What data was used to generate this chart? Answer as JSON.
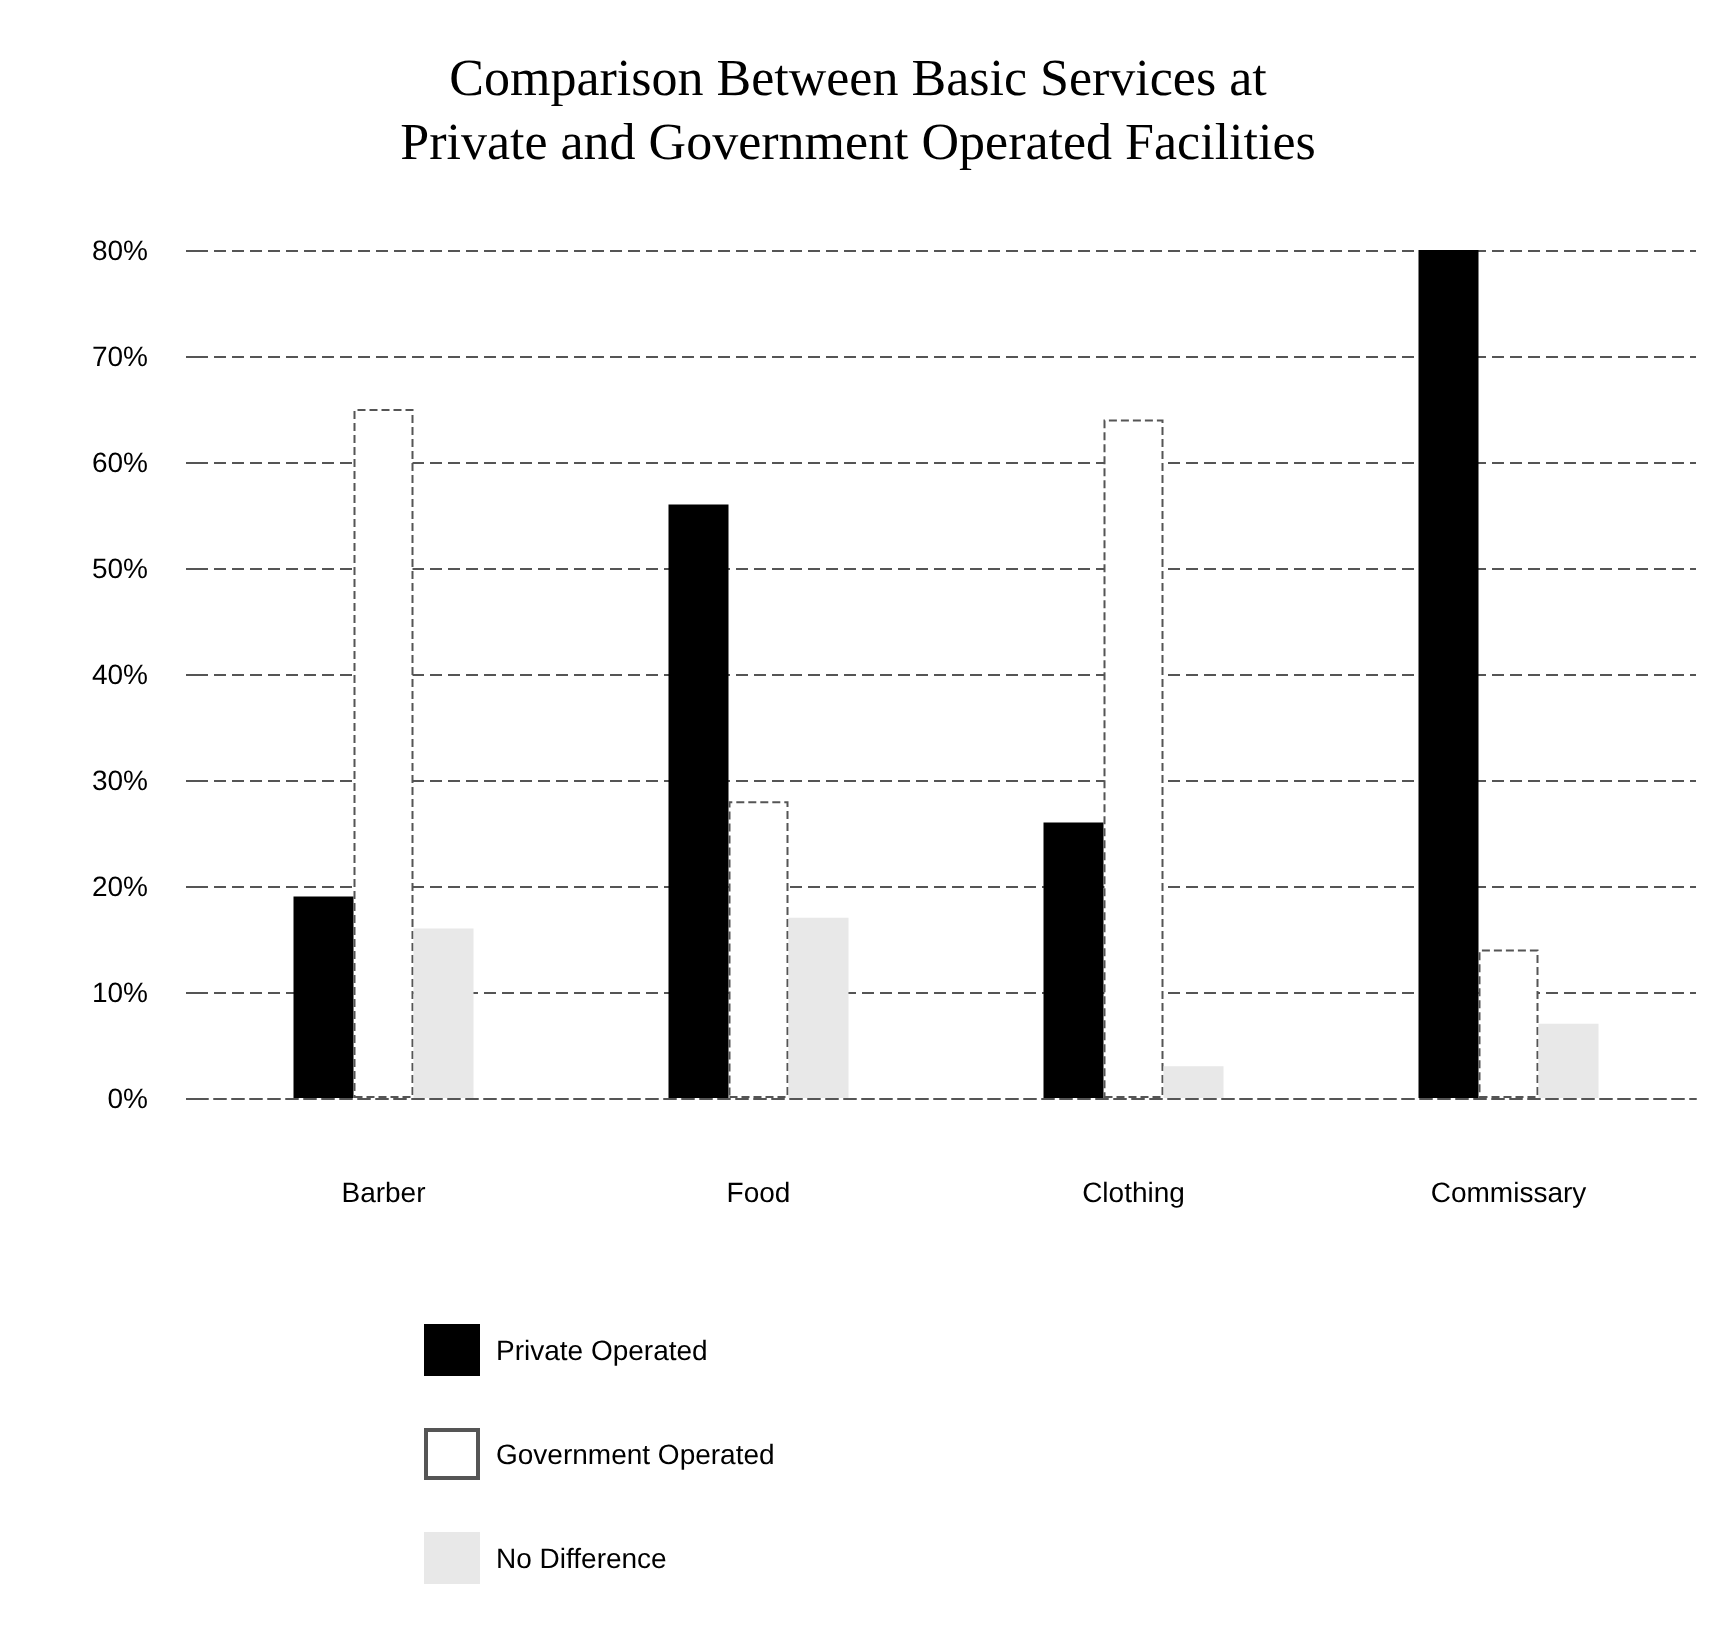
{
  "chart_data": {
    "type": "bar",
    "title": "Comparison Between Basic Services at\nPrivate and Government Operated Facilities",
    "categories": [
      "Barber",
      "Food",
      "Clothing",
      "Commissary"
    ],
    "series": [
      {
        "name": "Private Operated",
        "color": "#000000",
        "values": [
          19,
          56,
          26,
          80
        ]
      },
      {
        "name": "Government Operated",
        "color": "#ffffff",
        "values": [
          65,
          28,
          64,
          14
        ]
      },
      {
        "name": "No Difference",
        "color": "#e8e8e8",
        "values": [
          16,
          17,
          3,
          7
        ]
      }
    ],
    "ylim": [
      0,
      80
    ],
    "yticks": [
      {
        "value": 0,
        "label": "0%"
      },
      {
        "value": 10,
        "label": "10%"
      },
      {
        "value": 20,
        "label": "20%"
      },
      {
        "value": 30,
        "label": "30%"
      },
      {
        "value": 40,
        "label": "40%"
      },
      {
        "value": 50,
        "label": "50%"
      },
      {
        "value": 60,
        "label": "60%"
      },
      {
        "value": 70,
        "label": "70%"
      },
      {
        "value": 80,
        "label": "80%"
      }
    ],
    "grid": "y",
    "legend": "bottom"
  }
}
